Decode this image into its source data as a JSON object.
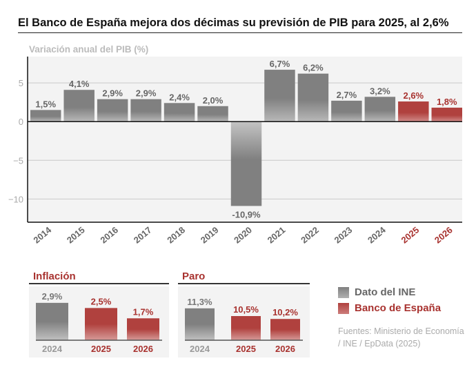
{
  "title": "El Banco de España mejora dos décimas su previsión de PIB para 2025, al 2,6%",
  "colors": {
    "ine": "#808080",
    "bde": "#b0413e",
    "plot_bg": "#f3f3f3"
  },
  "chart_data": [
    {
      "type": "bar",
      "title": "Variación anual del PIB (%)",
      "categories": [
        "2014",
        "2015",
        "2016",
        "2017",
        "2018",
        "2019",
        "2020",
        "2021",
        "2022",
        "2023",
        "2024",
        "2025",
        "2026"
      ],
      "values": [
        1.5,
        4.1,
        2.9,
        2.9,
        2.4,
        2.0,
        -10.9,
        6.7,
        6.2,
        2.7,
        3.2,
        2.6,
        1.8
      ],
      "labels": [
        "1,5%",
        "4,1%",
        "2,9%",
        "2,9%",
        "2,4%",
        "2,0%",
        "-10,9%",
        "6,7%",
        "6,2%",
        "2,7%",
        "3,2%",
        "2,6%",
        "1,8%"
      ],
      "series_source": [
        "ine",
        "ine",
        "ine",
        "ine",
        "ine",
        "ine",
        "ine",
        "ine",
        "ine",
        "ine",
        "ine",
        "bde",
        "bde"
      ],
      "yticks": [
        5,
        0,
        -5,
        -10
      ],
      "ytick_labels": [
        "5",
        "0",
        "−5",
        "−10"
      ],
      "ylim": [
        -13,
        8.4
      ],
      "grid": true
    },
    {
      "type": "bar",
      "title": "Inflación",
      "categories": [
        "2024",
        "2025",
        "2026"
      ],
      "values": [
        2.9,
        2.5,
        1.7
      ],
      "labels": [
        "2,9%",
        "2,5%",
        "1,7%"
      ],
      "series_source": [
        "ine",
        "bde",
        "bde"
      ],
      "ylim": [
        0,
        3
      ]
    },
    {
      "type": "bar",
      "title": "Paro",
      "categories": [
        "2024",
        "2025",
        "2026"
      ],
      "values": [
        11.3,
        10.5,
        10.2
      ],
      "labels": [
        "11,3%",
        "10,5%",
        "10,2%"
      ],
      "series_source": [
        "ine",
        "bde",
        "bde"
      ],
      "ylim": [
        8,
        12
      ]
    }
  ],
  "legend": [
    {
      "label": "Dato del INE",
      "source": "ine"
    },
    {
      "label": "Banco de España",
      "source": "bde"
    }
  ],
  "source_line1": "Fuentes: Ministerio de Economía",
  "source_line2": "/ INE / EpData (2025)"
}
